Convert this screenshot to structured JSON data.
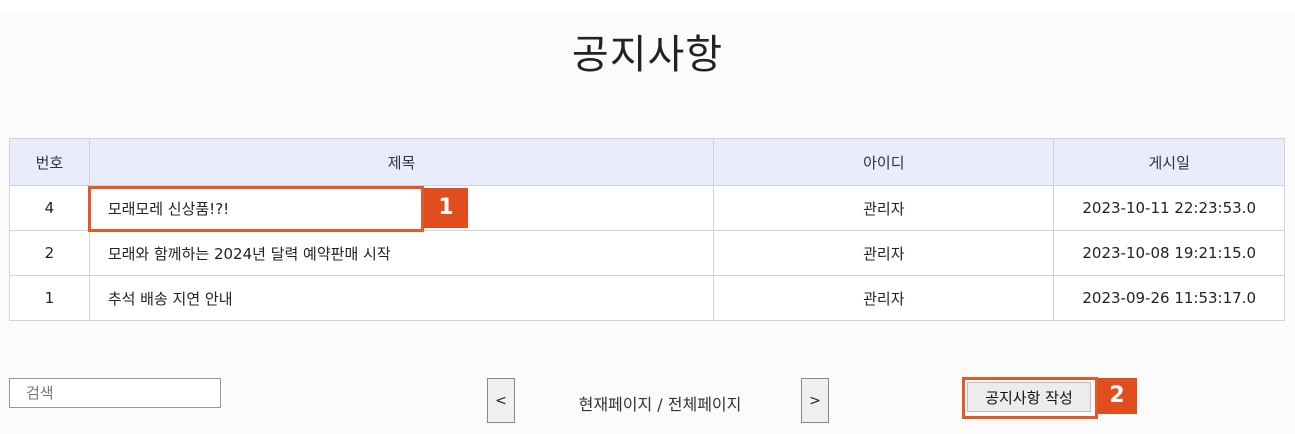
{
  "page": {
    "title": "공지사항"
  },
  "table": {
    "headers": {
      "no": "번호",
      "subject": "제목",
      "author": "아이디",
      "date": "게시일"
    },
    "rows": [
      {
        "no": "4",
        "subject": "모래모레 신상품!?!",
        "author": "관리자",
        "date": "2023-10-11 22:23:53.0"
      },
      {
        "no": "2",
        "subject": "모래와 함께하는 2024년 달력 예약판매 시작",
        "author": "관리자",
        "date": "2023-10-08 19:21:15.0"
      },
      {
        "no": "1",
        "subject": "추석 배송 지연 안내",
        "author": "관리자",
        "date": "2023-09-26 11:53:17.0"
      }
    ]
  },
  "search": {
    "placeholder": "검색"
  },
  "pagination": {
    "prev_label": "<",
    "next_label": ">",
    "info": "현재페이지 / 전체페이지"
  },
  "actions": {
    "write_label": "공지사항 작성"
  },
  "annotations": {
    "marker_1": "1",
    "marker_2": "2"
  },
  "colors": {
    "header_bg": "#e8ecfc",
    "marker": "#e04d1e"
  }
}
